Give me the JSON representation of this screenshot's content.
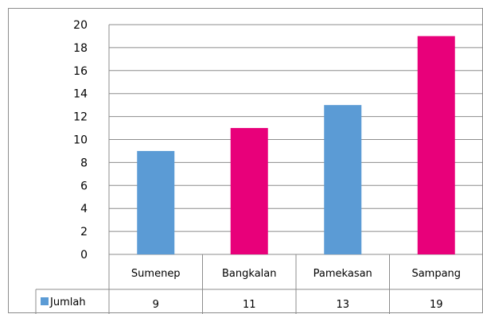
{
  "chart_data": {
    "type": "bar",
    "categories": [
      "Sumenep",
      "Bangkalan",
      "Pamekasan",
      "Sampang"
    ],
    "series": [
      {
        "name": "Jumlah",
        "values": [
          9,
          11,
          13,
          19
        ]
      }
    ],
    "bar_colors": [
      "#5b9bd5",
      "#e8007a",
      "#5b9bd5",
      "#e8007a"
    ],
    "legend_color": "#5b9bd5",
    "yticks": [
      "0",
      "2",
      "4",
      "6",
      "8",
      "10",
      "12",
      "14",
      "16",
      "18",
      "20"
    ],
    "ylim": [
      0,
      20
    ],
    "grid": true,
    "data_table": true,
    "legend_placement": "data-table-row-header",
    "title": "",
    "xlabel": "",
    "ylabel": ""
  }
}
